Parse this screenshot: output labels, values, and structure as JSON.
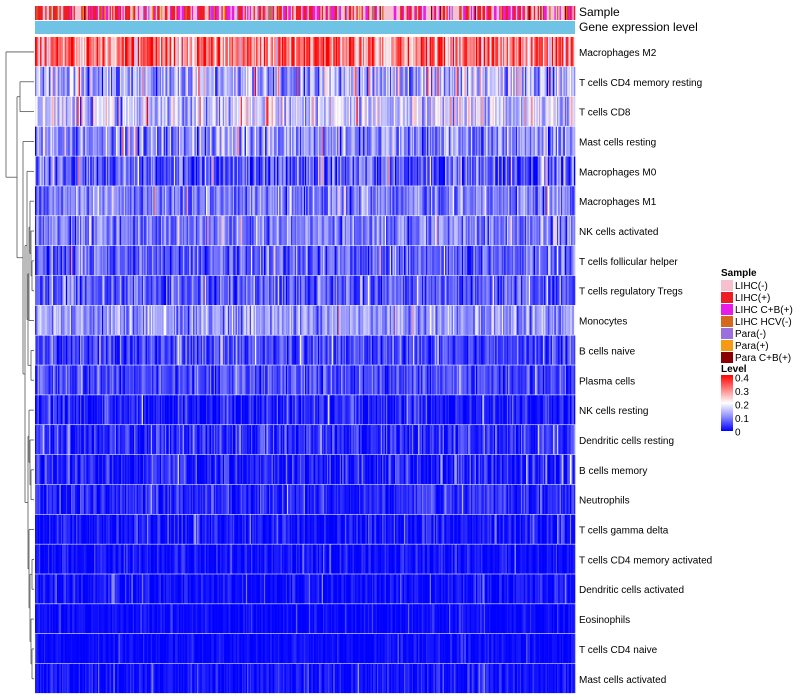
{
  "chart_data": {
    "type": "heatmap",
    "annotation_labels": {
      "sample": "Sample",
      "gene_expression": "Gene expression level"
    },
    "gene_expression_color": "#6fc3e5",
    "rows": [
      {
        "label": "Macrophages M2",
        "mean": 0.3,
        "spread": 0.12
      },
      {
        "label": "T cells CD4 memory resting",
        "mean": 0.13,
        "spread": 0.09
      },
      {
        "label": "T cells CD8",
        "mean": 0.16,
        "spread": 0.09
      },
      {
        "label": "Mast cells resting",
        "mean": 0.1,
        "spread": 0.08
      },
      {
        "label": "Macrophages M0",
        "mean": 0.06,
        "spread": 0.08
      },
      {
        "label": "Macrophages M1",
        "mean": 0.09,
        "spread": 0.06
      },
      {
        "label": "NK cells activated",
        "mean": 0.09,
        "spread": 0.06
      },
      {
        "label": "T cells follicular helper",
        "mean": 0.07,
        "spread": 0.06
      },
      {
        "label": "T cells regulatory  Tregs",
        "mean": 0.07,
        "spread": 0.06
      },
      {
        "label": "Monocytes",
        "mean": 0.11,
        "spread": 0.06
      },
      {
        "label": "B cells naive",
        "mean": 0.05,
        "spread": 0.05
      },
      {
        "label": "Plasma cells",
        "mean": 0.05,
        "spread": 0.05
      },
      {
        "label": "NK cells resting",
        "mean": 0.02,
        "spread": 0.05
      },
      {
        "label": "Dendritic cells resting",
        "mean": 0.03,
        "spread": 0.05
      },
      {
        "label": "B cells memory",
        "mean": 0.02,
        "spread": 0.05
      },
      {
        "label": "Neutrophils",
        "mean": 0.03,
        "spread": 0.04
      },
      {
        "label": "T cells gamma delta",
        "mean": 0.015,
        "spread": 0.04
      },
      {
        "label": "T cells CD4 memory activated",
        "mean": 0.01,
        "spread": 0.03
      },
      {
        "label": "Dendritic cells activated",
        "mean": 0.008,
        "spread": 0.03
      },
      {
        "label": "Eosinophils",
        "mean": 0.005,
        "spread": 0.02
      },
      {
        "label": "T cells CD4 naive",
        "mean": 0.005,
        "spread": 0.02
      },
      {
        "label": "Mast cells activated",
        "mean": 0.01,
        "spread": 0.03
      }
    ],
    "n_samples": 420,
    "color_scale": {
      "stops": [
        {
          "value": 0,
          "color": "#0000ff"
        },
        {
          "value": 0.1,
          "color": "#8a8aff"
        },
        {
          "value": 0.2,
          "color": "#ffffff"
        },
        {
          "value": 0.3,
          "color": "#ff8080"
        },
        {
          "value": 0.4,
          "color": "#ff0000"
        }
      ],
      "range": [
        0,
        0.4
      ]
    },
    "legend": {
      "sample_title": "Sample",
      "sample_groups": [
        {
          "label": "LIHC(-)",
          "color": "#f6c0cf"
        },
        {
          "label": "LIHC(+)",
          "color": "#ee1c25"
        },
        {
          "label": "LIHC C+B(+)",
          "color": "#e81ce8"
        },
        {
          "label": "LIHC HCV(-)",
          "color": "#d2691e"
        },
        {
          "label": "Para(-)",
          "color": "#9a6fe0"
        },
        {
          "label": "Para(+)",
          "color": "#f59a12"
        },
        {
          "label": "Para C+B(+)",
          "color": "#8b0000"
        }
      ],
      "level_title": "Level",
      "level_ticks": [
        "0.4",
        "0.3",
        "0.2",
        "0.1",
        "0"
      ]
    }
  }
}
